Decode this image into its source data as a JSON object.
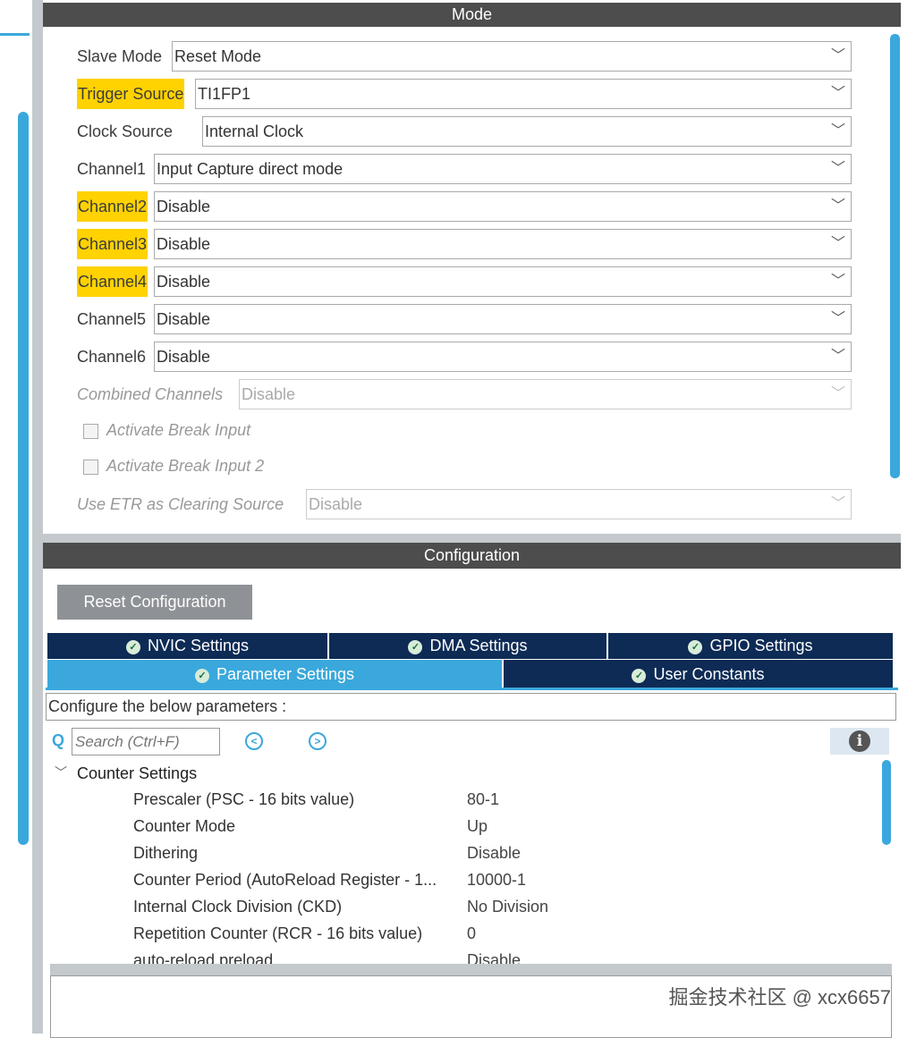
{
  "mode": {
    "title": "Mode",
    "rows": [
      {
        "label": "Slave Mode",
        "value": "Reset Mode",
        "highlight": false,
        "disabled": false
      },
      {
        "label": "Trigger Source",
        "value": "TI1FP1",
        "highlight": true,
        "disabled": false
      },
      {
        "label": "Clock Source",
        "value": "Internal Clock",
        "highlight": false,
        "disabled": false
      },
      {
        "label": "Channel1",
        "value": "Input Capture direct mode",
        "highlight": false,
        "disabled": false
      },
      {
        "label": "Channel2",
        "value": "Disable",
        "highlight": true,
        "disabled": false
      },
      {
        "label": "Channel3",
        "value": "Disable",
        "highlight": true,
        "disabled": false
      },
      {
        "label": "Channel4",
        "value": "Disable",
        "highlight": true,
        "disabled": false
      },
      {
        "label": "Channel5",
        "value": "Disable",
        "highlight": false,
        "disabled": false
      },
      {
        "label": "Channel6",
        "value": "Disable",
        "highlight": false,
        "disabled": false
      },
      {
        "label": "Combined Channels",
        "value": "Disable",
        "highlight": false,
        "disabled": true
      }
    ],
    "checkboxes": [
      {
        "label": "Activate Break Input",
        "checked": false
      },
      {
        "label": "Activate Break Input 2",
        "checked": false
      }
    ],
    "etr": {
      "label": "Use ETR as Clearing Source",
      "value": "Disable"
    }
  },
  "config": {
    "title": "Configuration",
    "reset_label": "Reset Configuration",
    "tabs": [
      {
        "label": "NVIC Settings"
      },
      {
        "label": "DMA Settings"
      },
      {
        "label": "GPIO Settings"
      },
      {
        "label": "Parameter Settings",
        "active": true
      },
      {
        "label": "User Constants"
      }
    ],
    "description": "Configure the below parameters :",
    "search_placeholder": "Search (Ctrl+F)",
    "group": "Counter Settings",
    "params": [
      {
        "name": "Prescaler (PSC - 16 bits value)",
        "value": "80-1"
      },
      {
        "name": "Counter Mode",
        "value": "Up"
      },
      {
        "name": "Dithering",
        "value": "Disable"
      },
      {
        "name": "Counter Period (AutoReload Register - 1...",
        "value": "10000-1"
      },
      {
        "name": "Internal Clock Division (CKD)",
        "value": "No Division"
      },
      {
        "name": "Repetition Counter (RCR - 16 bits value)",
        "value": "0"
      },
      {
        "name": "auto-reload preload",
        "value": "Disable"
      }
    ]
  },
  "watermark": "掘金技术社区 @ xcx6657",
  "colors": {
    "highlight": "#ffd200",
    "tab_dark": "#0d2b55",
    "tab_active": "#3aa8dc",
    "header": "#4d4d4d"
  }
}
